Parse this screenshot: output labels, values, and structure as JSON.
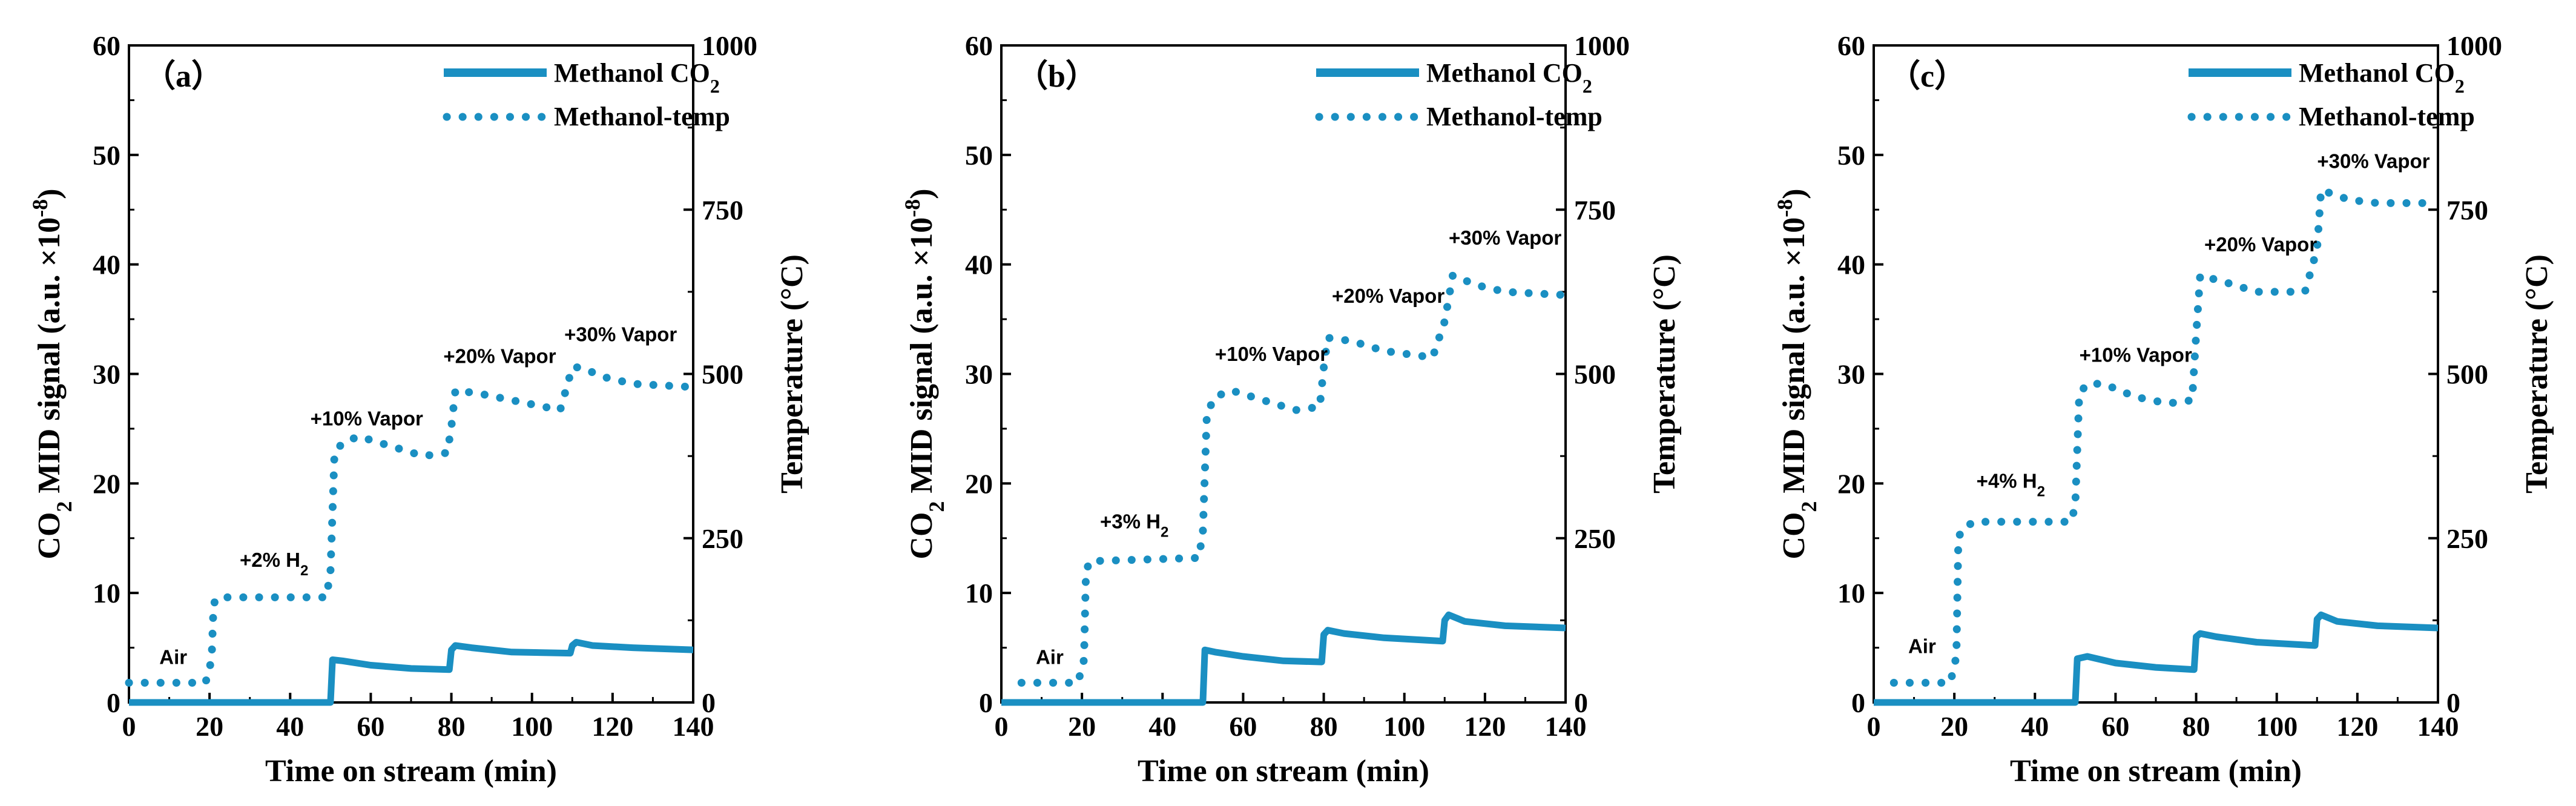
{
  "colors": {
    "series": "#1a8fc2",
    "axis": "#000000"
  },
  "chart_data": [
    {
      "type": "line",
      "panel_label": "（a）",
      "xlabel": "Time on stream (min)",
      "ylabel_left": {
        "prefix": "CO",
        "sub": "2",
        "mid": " MID signal (a.u. ×10",
        "sup": "-8",
        "suffix": ")"
      },
      "ylabel_right": "Temperature (°C)",
      "xlim": [
        0,
        140
      ],
      "ylim_left": [
        0,
        60
      ],
      "ylim_right": [
        0,
        1000
      ],
      "x_ticks": [
        "0",
        "20",
        "40",
        "60",
        "80",
        "100",
        "120",
        "140"
      ],
      "y_left_ticks": [
        "0",
        "10",
        "20",
        "30",
        "40",
        "50",
        "60"
      ],
      "y_right_ticks": [
        "0",
        "250",
        "500",
        "750",
        "1000"
      ],
      "legend": [
        {
          "label": "Methanol CO",
          "sub": "2",
          "style": "solid"
        },
        {
          "label": "Methanol-temp",
          "style": "dotted"
        }
      ],
      "series": [
        {
          "name": "Methanol CO2",
          "axis": "left",
          "style": "solid",
          "points": [
            [
              0,
              0
            ],
            [
              50,
              0
            ],
            [
              50.5,
              3.9
            ],
            [
              53,
              3.8
            ],
            [
              60,
              3.4
            ],
            [
              70,
              3.1
            ],
            [
              79.5,
              3.0
            ],
            [
              80,
              4.8
            ],
            [
              81,
              5.2
            ],
            [
              85,
              5.0
            ],
            [
              95,
              4.6
            ],
            [
              109.5,
              4.5
            ],
            [
              110,
              5.2
            ],
            [
              111,
              5.5
            ],
            [
              115,
              5.2
            ],
            [
              125,
              5.0
            ],
            [
              140,
              4.8
            ]
          ]
        },
        {
          "name": "Methanol-temp",
          "axis": "right",
          "style": "dotted",
          "points": [
            [
              0,
              30
            ],
            [
              19,
              30
            ],
            [
              20.5,
              65
            ],
            [
              21,
              150
            ],
            [
              22,
              160
            ],
            [
              49,
              160
            ],
            [
              50,
              200
            ],
            [
              51,
              380
            ],
            [
              53,
              395
            ],
            [
              57,
              405
            ],
            [
              65,
              390
            ],
            [
              73,
              375
            ],
            [
              79,
              380
            ],
            [
              80,
              420
            ],
            [
              81,
              475
            ],
            [
              87,
              470
            ],
            [
              95,
              460
            ],
            [
              107,
              445
            ],
            [
              110,
              510
            ],
            [
              112,
              510
            ],
            [
              118,
              495
            ],
            [
              125,
              485
            ],
            [
              140,
              480
            ]
          ]
        }
      ],
      "annotations": [
        {
          "text": "Air",
          "x": 11,
          "y": 3.5
        },
        {
          "text": "+2% H",
          "sub": "2",
          "x": 36,
          "y": 12.4
        },
        {
          "text": "+10% Vapor",
          "x": 59,
          "y": 25.3
        },
        {
          "text": "+20% Vapor",
          "x": 92,
          "y": 31.0
        },
        {
          "text": "+30% Vapor",
          "x": 122,
          "y": 33.0
        }
      ]
    },
    {
      "type": "line",
      "panel_label": "（b）",
      "xlabel": "Time on stream (min)",
      "ylabel_left": {
        "prefix": "CO",
        "sub": "2",
        "mid": " MID signal (a.u. ×10",
        "sup": "-8",
        "suffix": ")"
      },
      "ylabel_right": "Temperature (°C)",
      "xlim": [
        0,
        140
      ],
      "ylim_left": [
        0,
        60
      ],
      "ylim_right": [
        0,
        1000
      ],
      "x_ticks": [
        "0",
        "20",
        "40",
        "60",
        "80",
        "100",
        "120",
        "140"
      ],
      "y_left_ticks": [
        "0",
        "10",
        "20",
        "30",
        "40",
        "50",
        "60"
      ],
      "y_right_ticks": [
        "0",
        "250",
        "500",
        "750",
        "1000"
      ],
      "legend": [
        {
          "label": "Methanol CO",
          "sub": "2",
          "style": "solid"
        },
        {
          "label": "Methanol-temp",
          "style": "dotted"
        }
      ],
      "series": [
        {
          "name": "Methanol CO2",
          "axis": "left",
          "style": "solid",
          "points": [
            [
              0,
              0
            ],
            [
              50,
              0
            ],
            [
              50.5,
              4.8
            ],
            [
              53,
              4.6
            ],
            [
              60,
              4.2
            ],
            [
              70,
              3.8
            ],
            [
              79.5,
              3.7
            ],
            [
              80,
              6.2
            ],
            [
              81,
              6.6
            ],
            [
              85,
              6.3
            ],
            [
              95,
              5.9
            ],
            [
              109.5,
              5.6
            ],
            [
              110,
              7.5
            ],
            [
              111,
              8.0
            ],
            [
              115,
              7.4
            ],
            [
              125,
              7.0
            ],
            [
              140,
              6.8
            ]
          ]
        },
        {
          "name": "Methanol-temp",
          "axis": "right",
          "style": "dotted",
          "points": [
            [
              5,
              30
            ],
            [
              19,
              30
            ],
            [
              20.5,
              65
            ],
            [
              21,
              200
            ],
            [
              22,
              215
            ],
            [
              49,
              220
            ],
            [
              50,
              260
            ],
            [
              51,
              440
            ],
            [
              53,
              465
            ],
            [
              57,
              475
            ],
            [
              65,
              460
            ],
            [
              73,
              445
            ],
            [
              79,
              450
            ],
            [
              80,
              510
            ],
            [
              81,
              555
            ],
            [
              87,
              550
            ],
            [
              95,
              535
            ],
            [
              107,
              525
            ],
            [
              110,
              580
            ],
            [
              112,
              650
            ],
            [
              118,
              635
            ],
            [
              125,
              625
            ],
            [
              140,
              620
            ]
          ]
        }
      ],
      "annotations": [
        {
          "text": "Air",
          "x": 12,
          "y": 3.5
        },
        {
          "text": "+3% H",
          "sub": "2",
          "x": 33,
          "y": 15.9
        },
        {
          "text": "+10% Vapor",
          "x": 67,
          "y": 31.2
        },
        {
          "text": "+20% Vapor",
          "x": 96,
          "y": 36.5
        },
        {
          "text": "+30% Vapor",
          "x": 125,
          "y": 41.8
        }
      ]
    },
    {
      "type": "line",
      "panel_label": "（c）",
      "xlabel": "Time on stream (min)",
      "ylabel_left": {
        "prefix": "CO",
        "sub": "2",
        "mid": " MID signal (a.u. ×10",
        "sup": "-8",
        "suffix": ")"
      },
      "ylabel_right": "Temperature (°C)",
      "xlim": [
        0,
        140
      ],
      "ylim_left": [
        0,
        60
      ],
      "ylim_right": [
        0,
        1000
      ],
      "x_ticks": [
        "0",
        "20",
        "40",
        "60",
        "80",
        "100",
        "120",
        "140"
      ],
      "y_left_ticks": [
        "0",
        "10",
        "20",
        "30",
        "40",
        "50",
        "60"
      ],
      "y_right_ticks": [
        "0",
        "250",
        "500",
        "750",
        "1000"
      ],
      "legend": [
        {
          "label": "Methanol CO",
          "sub": "2",
          "style": "solid"
        },
        {
          "label": "Methanol-temp",
          "style": "dotted"
        }
      ],
      "series": [
        {
          "name": "Methanol CO2",
          "axis": "left",
          "style": "solid",
          "points": [
            [
              0,
              0
            ],
            [
              50,
              0
            ],
            [
              50.5,
              4.0
            ],
            [
              53,
              4.2
            ],
            [
              60,
              3.6
            ],
            [
              70,
              3.2
            ],
            [
              79.5,
              3.0
            ],
            [
              80,
              6.0
            ],
            [
              81,
              6.3
            ],
            [
              85,
              6.0
            ],
            [
              95,
              5.5
            ],
            [
              109.5,
              5.2
            ],
            [
              110,
              7.6
            ],
            [
              111,
              8.0
            ],
            [
              115,
              7.4
            ],
            [
              125,
              7.0
            ],
            [
              140,
              6.8
            ]
          ]
        },
        {
          "name": "Methanol-temp",
          "axis": "right",
          "style": "dotted",
          "points": [
            [
              5,
              30
            ],
            [
              19,
              30
            ],
            [
              20.5,
              70
            ],
            [
              21,
              250
            ],
            [
              22,
              265
            ],
            [
              25,
              275
            ],
            [
              49,
              275
            ],
            [
              50,
              300
            ],
            [
              51,
              470
            ],
            [
              53,
              485
            ],
            [
              57,
              485
            ],
            [
              65,
              465
            ],
            [
              73,
              455
            ],
            [
              79,
              460
            ],
            [
              80,
              560
            ],
            [
              81,
              650
            ],
            [
              87,
              640
            ],
            [
              95,
              625
            ],
            [
              107,
              625
            ],
            [
              110,
              690
            ],
            [
              111,
              780
            ],
            [
              118,
              765
            ],
            [
              125,
              760
            ],
            [
              140,
              760
            ]
          ]
        }
      ],
      "annotations": [
        {
          "text": "Air",
          "x": 12,
          "y": 4.5
        },
        {
          "text": "+4% H",
          "sub": "2",
          "x": 34,
          "y": 19.6
        },
        {
          "text": "+10% Vapor",
          "x": 65,
          "y": 31.1
        },
        {
          "text": "+20% Vapor",
          "x": 96,
          "y": 41.2
        },
        {
          "text": "+30% Vapor",
          "x": 124,
          "y": 48.8
        }
      ]
    }
  ]
}
